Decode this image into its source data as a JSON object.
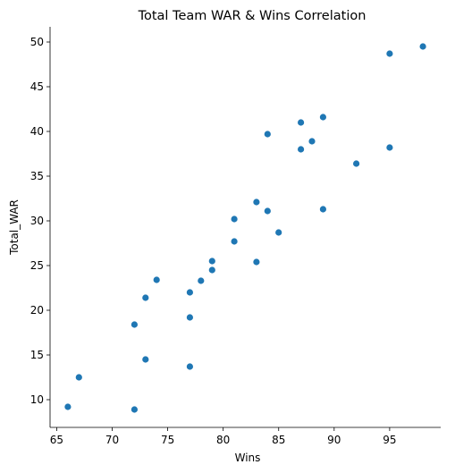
{
  "chart_data": {
    "type": "scatter",
    "title": "Total Team WAR & Wins Correlation",
    "xlabel": "Wins",
    "ylabel": "Total_WAR",
    "xlim": [
      64.4,
      99.6
    ],
    "ylim": [
      6.9,
      51.7
    ],
    "xticks": [
      65,
      70,
      75,
      80,
      85,
      90,
      95
    ],
    "yticks": [
      10,
      15,
      20,
      25,
      30,
      35,
      40,
      45,
      50
    ],
    "grid": false,
    "marker_color": "#1f77b4",
    "points": [
      {
        "x": 66,
        "y": 9.2
      },
      {
        "x": 67,
        "y": 12.5
      },
      {
        "x": 72,
        "y": 8.9
      },
      {
        "x": 72,
        "y": 18.4
      },
      {
        "x": 73,
        "y": 14.5
      },
      {
        "x": 73,
        "y": 21.4
      },
      {
        "x": 74,
        "y": 23.4
      },
      {
        "x": 77,
        "y": 13.7
      },
      {
        "x": 77,
        "y": 19.2
      },
      {
        "x": 77,
        "y": 22.0
      },
      {
        "x": 78,
        "y": 23.3
      },
      {
        "x": 79,
        "y": 24.5
      },
      {
        "x": 79,
        "y": 25.5
      },
      {
        "x": 81,
        "y": 27.7
      },
      {
        "x": 81,
        "y": 30.2
      },
      {
        "x": 83,
        "y": 25.4
      },
      {
        "x": 83,
        "y": 32.1
      },
      {
        "x": 84,
        "y": 31.1
      },
      {
        "x": 84,
        "y": 39.7
      },
      {
        "x": 85,
        "y": 28.7
      },
      {
        "x": 87,
        "y": 38.0
      },
      {
        "x": 87,
        "y": 41.0
      },
      {
        "x": 88,
        "y": 38.9
      },
      {
        "x": 89,
        "y": 31.3
      },
      {
        "x": 89,
        "y": 41.6
      },
      {
        "x": 92,
        "y": 36.4
      },
      {
        "x": 95,
        "y": 38.2
      },
      {
        "x": 95,
        "y": 48.7
      },
      {
        "x": 98,
        "y": 49.5
      }
    ]
  }
}
